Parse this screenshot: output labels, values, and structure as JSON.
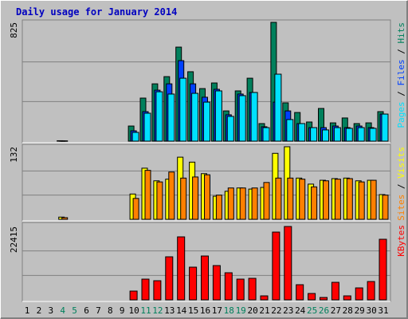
{
  "chart_data": [
    {
      "type": "bar",
      "title": "Daily usage for January 2014",
      "legend_separator": " / ",
      "ylim": [
        0,
        825
      ],
      "yticks": [
        825
      ],
      "series": [
        {
          "name": "Pages",
          "color": "#00e0ff",
          "values": [
            0,
            0,
            0,
            2,
            0,
            0,
            0,
            0,
            0,
            61,
            194,
            343,
            327,
            437,
            332,
            271,
            349,
            172,
            316,
            338,
            94,
            465,
            150,
            122,
            94,
            78,
            94,
            89,
            94,
            89,
            188
          ]
        },
        {
          "name": "Files",
          "color": "#0040ff",
          "values": [
            0,
            0,
            0,
            2,
            0,
            0,
            0,
            0,
            0,
            72,
            205,
            354,
            398,
            559,
            398,
            305,
            360,
            183,
            327,
            338,
            100,
            271,
            210,
            122,
            94,
            94,
            105,
            94,
            105,
            94,
            188
          ]
        },
        {
          "name": "Hits",
          "color": "#00805c",
          "values": [
            0,
            0,
            0,
            3,
            0,
            0,
            0,
            0,
            0,
            105,
            299,
            398,
            448,
            653,
            482,
            365,
            404,
            210,
            349,
            437,
            122,
            825,
            266,
            199,
            133,
            227,
            127,
            161,
            122,
            127,
            205
          ]
        }
      ]
    },
    {
      "type": "bar",
      "legend_separator": " / ",
      "ylim": [
        0,
        132
      ],
      "yticks": [
        132
      ],
      "series": [
        {
          "name": "Sites",
          "color": "#ff8000",
          "values": [
            0,
            0,
            0,
            3,
            0,
            0,
            0,
            0,
            0,
            38,
            89,
            68,
            86,
            75,
            77,
            81,
            44,
            57,
            57,
            57,
            67,
            75,
            75,
            73,
            59,
            70,
            73,
            74,
            68,
            71,
            44
          ]
        },
        {
          "name": "Visits",
          "color": "#ffff00",
          "values": [
            0,
            0,
            0,
            4,
            0,
            0,
            0,
            0,
            0,
            46,
            93,
            70,
            73,
            113,
            104,
            83,
            42,
            51,
            57,
            55,
            58,
            120,
            132,
            75,
            64,
            71,
            74,
            75,
            70,
            71,
            45
          ]
        }
      ]
    },
    {
      "type": "bar",
      "ylim": [
        0,
        22415
      ],
      "yticks": [
        22415
      ],
      "series": [
        {
          "name": "KBytes",
          "color": "#ff0000",
          "values": [
            0,
            0,
            0,
            0,
            0,
            0,
            0,
            0,
            0,
            2680,
            6334,
            5846,
            13154,
            19244,
            9988,
            13398,
            10475,
            8283,
            6334,
            6577,
            1218,
            20706,
            22415,
            4628,
            1949,
            731,
            5359,
            1218,
            3654,
            5603,
            18514
          ]
        }
      ],
      "categories": [
        "1",
        "2",
        "3",
        "4",
        "5",
        "6",
        "7",
        "8",
        "9",
        "10",
        "11",
        "12",
        "13",
        "14",
        "15",
        "16",
        "17",
        "18",
        "19",
        "20",
        "21",
        "22",
        "23",
        "24",
        "25",
        "26",
        "27",
        "28",
        "29",
        "30",
        "31"
      ],
      "category_colors": [
        "#000000",
        "#000000",
        "#000000",
        "#00805c",
        "#00805c",
        "#000000",
        "#000000",
        "#000000",
        "#000000",
        "#000000",
        "#00805c",
        "#00805c",
        "#000000",
        "#000000",
        "#000000",
        "#000000",
        "#000000",
        "#00805c",
        "#00805c",
        "#000000",
        "#000000",
        "#000000",
        "#000000",
        "#000000",
        "#00805c",
        "#00805c",
        "#000000",
        "#000000",
        "#000000",
        "#000000",
        "#000000"
      ]
    }
  ]
}
